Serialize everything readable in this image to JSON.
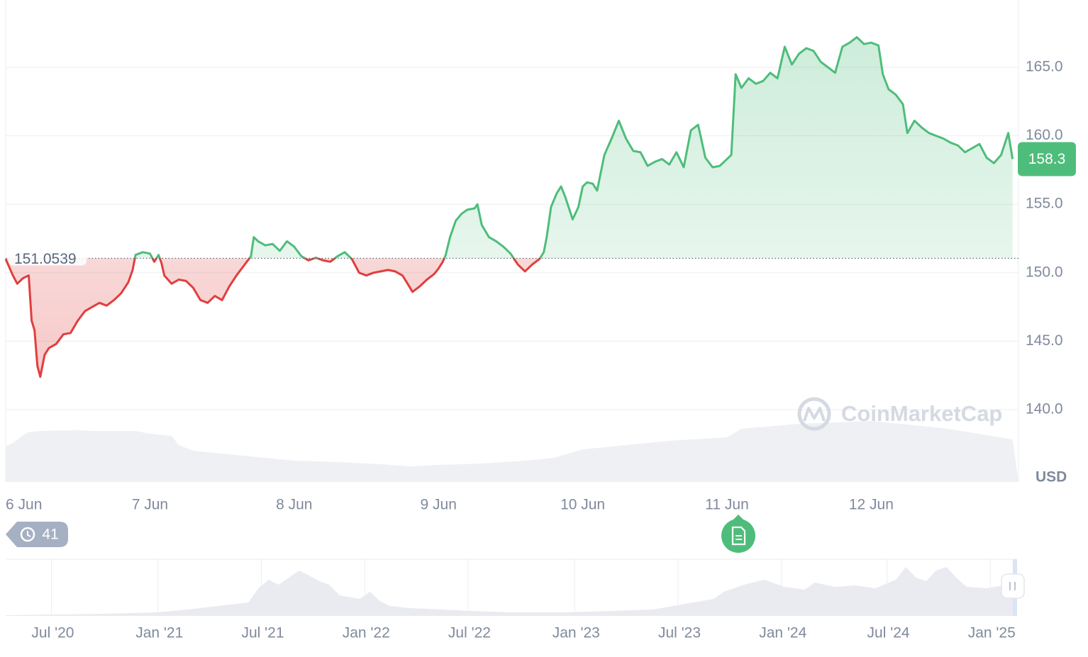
{
  "chart_data": {
    "type": "line",
    "currency_label": "USD",
    "watermark": "CoinMarketCap",
    "reference_price": 151.0539,
    "reference_label": "151.0539",
    "current_price": 158.3,
    "current_label": "158.3",
    "ylim": [
      137.5,
      168.5
    ],
    "y_ticks": [
      {
        "value": 140,
        "label": "140.0"
      },
      {
        "value": 145,
        "label": "145.0"
      },
      {
        "value": 150,
        "label": "150.0"
      },
      {
        "value": 155,
        "label": "155.0"
      },
      {
        "value": 160,
        "label": "160.0"
      },
      {
        "value": 165,
        "label": "165.0"
      }
    ],
    "x_ticks": [
      {
        "day": 0,
        "label": "6 Jun"
      },
      {
        "day": 1,
        "label": "7 Jun"
      },
      {
        "day": 2,
        "label": "8 Jun"
      },
      {
        "day": 3,
        "label": "9 Jun"
      },
      {
        "day": 4,
        "label": "10 Jun"
      },
      {
        "day": 5,
        "label": "11 Jun"
      },
      {
        "day": 6,
        "label": "12 Jun"
      }
    ],
    "xlim_days": [
      0,
      6.98
    ],
    "series": [
      {
        "points": [
          [
            0,
            151.0
          ],
          [
            0.05,
            149.8
          ],
          [
            0.08,
            149.2
          ],
          [
            0.12,
            149.6
          ],
          [
            0.16,
            149.8
          ],
          [
            0.18,
            146.5
          ],
          [
            0.2,
            145.8
          ],
          [
            0.22,
            143.2
          ],
          [
            0.24,
            142.4
          ],
          [
            0.27,
            144.0
          ],
          [
            0.3,
            144.5
          ],
          [
            0.35,
            144.8
          ],
          [
            0.4,
            145.5
          ],
          [
            0.45,
            145.6
          ],
          [
            0.5,
            146.5
          ],
          [
            0.55,
            147.2
          ],
          [
            0.6,
            147.5
          ],
          [
            0.65,
            147.8
          ],
          [
            0.7,
            147.6
          ],
          [
            0.75,
            148.0
          ],
          [
            0.8,
            148.5
          ],
          [
            0.85,
            149.3
          ],
          [
            0.88,
            150.2
          ],
          [
            0.9,
            151.3
          ],
          [
            0.95,
            151.5
          ],
          [
            1.0,
            151.4
          ],
          [
            1.03,
            150.8
          ],
          [
            1.06,
            151.3
          ],
          [
            1.08,
            150.7
          ],
          [
            1.1,
            149.8
          ],
          [
            1.15,
            149.2
          ],
          [
            1.2,
            149.5
          ],
          [
            1.25,
            149.4
          ],
          [
            1.3,
            148.9
          ],
          [
            1.35,
            148.0
          ],
          [
            1.4,
            147.8
          ],
          [
            1.45,
            148.3
          ],
          [
            1.5,
            148.0
          ],
          [
            1.55,
            149.0
          ],
          [
            1.6,
            149.8
          ],
          [
            1.65,
            150.5
          ],
          [
            1.7,
            151.2
          ],
          [
            1.72,
            152.6
          ],
          [
            1.75,
            152.3
          ],
          [
            1.8,
            152.0
          ],
          [
            1.85,
            152.1
          ],
          [
            1.9,
            151.6
          ],
          [
            1.95,
            152.3
          ],
          [
            2.0,
            151.9
          ],
          [
            2.05,
            151.2
          ],
          [
            2.1,
            150.9
          ],
          [
            2.15,
            151.1
          ],
          [
            2.2,
            150.9
          ],
          [
            2.25,
            150.8
          ],
          [
            2.3,
            151.2
          ],
          [
            2.35,
            151.5
          ],
          [
            2.4,
            151.0
          ],
          [
            2.45,
            150.0
          ],
          [
            2.5,
            149.8
          ],
          [
            2.55,
            150.0
          ],
          [
            2.6,
            150.1
          ],
          [
            2.65,
            150.2
          ],
          [
            2.7,
            150.1
          ],
          [
            2.75,
            149.8
          ],
          [
            2.78,
            149.3
          ],
          [
            2.82,
            148.6
          ],
          [
            2.87,
            149.0
          ],
          [
            2.92,
            149.5
          ],
          [
            2.97,
            149.9
          ],
          [
            3.0,
            150.3
          ],
          [
            3.03,
            150.8
          ],
          [
            3.05,
            151.3
          ],
          [
            3.08,
            152.6
          ],
          [
            3.12,
            153.8
          ],
          [
            3.16,
            154.3
          ],
          [
            3.2,
            154.6
          ],
          [
            3.25,
            154.7
          ],
          [
            3.27,
            155.0
          ],
          [
            3.3,
            153.5
          ],
          [
            3.35,
            152.6
          ],
          [
            3.4,
            152.3
          ],
          [
            3.45,
            151.9
          ],
          [
            3.5,
            151.4
          ],
          [
            3.55,
            150.6
          ],
          [
            3.6,
            150.1
          ],
          [
            3.65,
            150.6
          ],
          [
            3.7,
            151.0
          ],
          [
            3.73,
            151.5
          ],
          [
            3.75,
            152.6
          ],
          [
            3.78,
            154.8
          ],
          [
            3.82,
            155.8
          ],
          [
            3.85,
            156.3
          ],
          [
            3.88,
            155.5
          ],
          [
            3.93,
            153.9
          ],
          [
            3.97,
            154.8
          ],
          [
            4.0,
            156.3
          ],
          [
            4.03,
            156.6
          ],
          [
            4.07,
            156.5
          ],
          [
            4.1,
            156.0
          ],
          [
            4.15,
            158.6
          ],
          [
            4.2,
            159.8
          ],
          [
            4.25,
            161.1
          ],
          [
            4.3,
            159.8
          ],
          [
            4.35,
            158.9
          ],
          [
            4.4,
            158.8
          ],
          [
            4.45,
            157.8
          ],
          [
            4.5,
            158.1
          ],
          [
            4.55,
            158.3
          ],
          [
            4.6,
            157.9
          ],
          [
            4.65,
            158.8
          ],
          [
            4.7,
            157.7
          ],
          [
            4.75,
            160.4
          ],
          [
            4.8,
            160.8
          ],
          [
            4.85,
            158.4
          ],
          [
            4.9,
            157.7
          ],
          [
            4.95,
            157.8
          ],
          [
            5.0,
            158.3
          ],
          [
            5.03,
            158.6
          ],
          [
            5.06,
            164.5
          ],
          [
            5.1,
            163.5
          ],
          [
            5.15,
            164.2
          ],
          [
            5.2,
            163.8
          ],
          [
            5.25,
            164.0
          ],
          [
            5.3,
            164.6
          ],
          [
            5.35,
            164.2
          ],
          [
            5.4,
            166.5
          ],
          [
            5.45,
            165.2
          ],
          [
            5.5,
            166.0
          ],
          [
            5.55,
            166.4
          ],
          [
            5.6,
            166.2
          ],
          [
            5.65,
            165.4
          ],
          [
            5.7,
            165.0
          ],
          [
            5.75,
            164.6
          ],
          [
            5.8,
            166.5
          ],
          [
            5.85,
            166.8
          ],
          [
            5.9,
            167.2
          ],
          [
            5.95,
            166.7
          ],
          [
            6.0,
            166.8
          ],
          [
            6.05,
            166.6
          ],
          [
            6.08,
            164.5
          ],
          [
            6.12,
            163.4
          ],
          [
            6.17,
            163.0
          ],
          [
            6.22,
            162.3
          ],
          [
            6.25,
            160.2
          ],
          [
            6.3,
            161.1
          ],
          [
            6.35,
            160.6
          ],
          [
            6.4,
            160.2
          ],
          [
            6.45,
            160.0
          ],
          [
            6.5,
            159.8
          ],
          [
            6.55,
            159.5
          ],
          [
            6.6,
            159.3
          ],
          [
            6.65,
            158.8
          ],
          [
            6.7,
            159.1
          ],
          [
            6.75,
            159.4
          ],
          [
            6.8,
            158.4
          ],
          [
            6.85,
            158.0
          ],
          [
            6.9,
            158.6
          ],
          [
            6.95,
            160.2
          ],
          [
            6.98,
            158.3
          ]
        ]
      }
    ],
    "navigator": {
      "x_ticks": [
        {
          "label": "Jul '20"
        },
        {
          "label": "Jan '21"
        },
        {
          "label": "Jul '21"
        },
        {
          "label": "Jan '22"
        },
        {
          "label": "Jul '22"
        },
        {
          "label": "Jan '23"
        },
        {
          "label": "Jul '23"
        },
        {
          "label": "Jan '24"
        },
        {
          "label": "Jul '24"
        },
        {
          "label": "Jan '25"
        }
      ],
      "tick_positions_fraction": [
        0.042,
        0.14,
        0.235,
        0.33,
        0.425,
        0.523,
        0.618,
        0.713,
        0.81,
        0.905
      ]
    }
  },
  "badges": {
    "history_count": "41",
    "history_icon": "history-icon",
    "news_icon": "document-icon"
  },
  "colors": {
    "up": "#4ebd7b",
    "down": "#e03e3e",
    "up_fill": "#d6f2e1",
    "down_fill": "#f9d3d3",
    "grid": "#eceef2",
    "axis_text": "#808a9d",
    "price_badge": "#4ebd7b"
  }
}
